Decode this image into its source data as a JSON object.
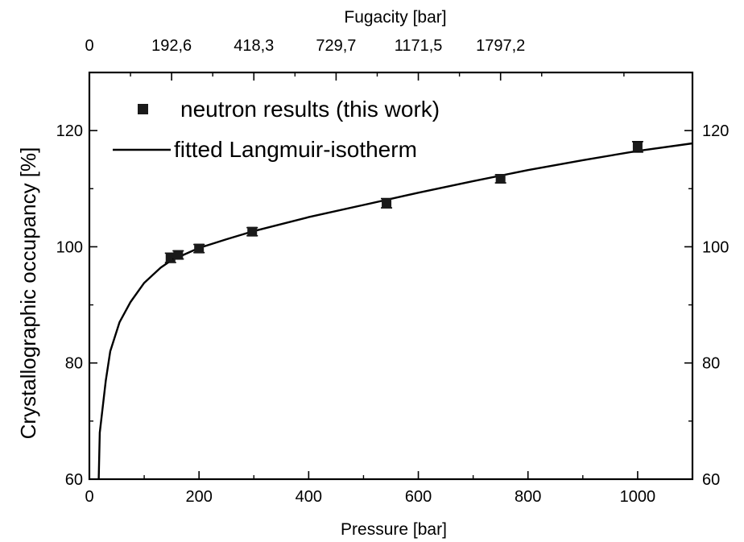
{
  "chart_data": {
    "type": "scatter",
    "xlabel": "Pressure [bar]",
    "ylabel": "Crystallographic occupancy [%]",
    "top_axis_label": "Fugacity [bar]",
    "xlim": [
      0,
      1100
    ],
    "ylim": [
      60,
      130
    ],
    "x_ticks": [
      0,
      200,
      400,
      600,
      800,
      1000
    ],
    "y_ticks": [
      60,
      80,
      100,
      120
    ],
    "top_ticks": [
      {
        "pressure": 0,
        "label": "0"
      },
      {
        "pressure": 150,
        "label": "192,6"
      },
      {
        "pressure": 300,
        "label": "418,3"
      },
      {
        "pressure": 450,
        "label": "729,7"
      },
      {
        "pressure": 600,
        "label": "1171,5"
      },
      {
        "pressure": 750,
        "label": "1797,2"
      }
    ],
    "legend_placement": "top-left",
    "series": [
      {
        "name": "neutron results (this work)",
        "style": "square markers with error bars",
        "color": "#1a1a1a",
        "points": [
          {
            "x": 148,
            "y": 98.1,
            "err": 0.8
          },
          {
            "x": 162,
            "y": 98.6,
            "err": 0.7
          },
          {
            "x": 200,
            "y": 99.7,
            "err": 0.7
          },
          {
            "x": 297,
            "y": 102.6,
            "err": 0.7
          },
          {
            "x": 542,
            "y": 107.5,
            "err": 0.8
          },
          {
            "x": 750,
            "y": 111.7,
            "err": 0.7
          },
          {
            "x": 1000,
            "y": 117.2,
            "err": 0.9
          }
        ]
      },
      {
        "name": "fitted Langmuir-isotherm",
        "style": "solid line",
        "color": "#000000",
        "points": [
          {
            "x": 17,
            "y": 60
          },
          {
            "x": 19,
            "y": 68
          },
          {
            "x": 30,
            "y": 77
          },
          {
            "x": 38,
            "y": 82
          },
          {
            "x": 55,
            "y": 87
          },
          {
            "x": 75,
            "y": 90.5
          },
          {
            "x": 100,
            "y": 93.8
          },
          {
            "x": 130,
            "y": 96.4
          },
          {
            "x": 150,
            "y": 97.7
          },
          {
            "x": 200,
            "y": 99.8
          },
          {
            "x": 250,
            "y": 101.3
          },
          {
            "x": 300,
            "y": 102.7
          },
          {
            "x": 400,
            "y": 105.1
          },
          {
            "x": 500,
            "y": 107.2
          },
          {
            "x": 600,
            "y": 109.3
          },
          {
            "x": 700,
            "y": 111.3
          },
          {
            "x": 800,
            "y": 113.2
          },
          {
            "x": 900,
            "y": 114.9
          },
          {
            "x": 1000,
            "y": 116.5
          },
          {
            "x": 1100,
            "y": 117.8
          }
        ]
      }
    ]
  }
}
